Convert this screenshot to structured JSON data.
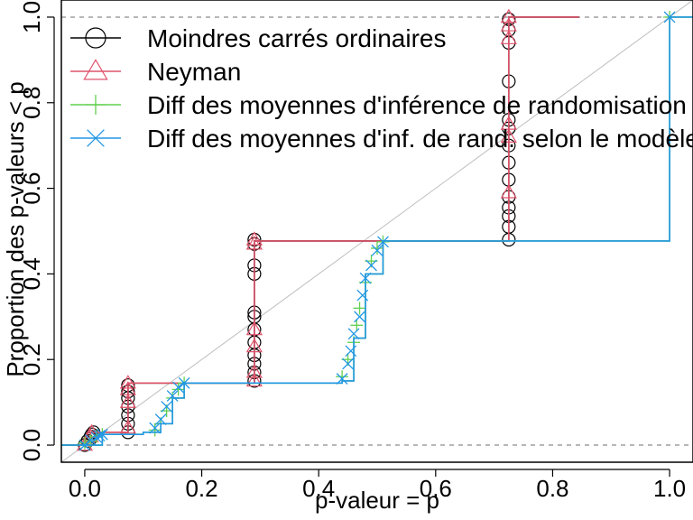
{
  "chart_data": {
    "type": "line",
    "title": "",
    "xlabel": "p-valeur = p",
    "ylabel": "Proportion des p-valeurs < p",
    "xlim": [
      -0.04,
      1.04
    ],
    "ylim": [
      -0.04,
      1.04
    ],
    "xticks": [
      "0.0",
      "0.2",
      "0.4",
      "0.6",
      "0.8",
      "1.0"
    ],
    "yticks": [
      "0.0",
      "0.2",
      "0.4",
      "0.6",
      "0.8",
      "1.0"
    ],
    "xtick_values": [
      0,
      0.2,
      0.4,
      0.6,
      0.8,
      1.0
    ],
    "ytick_values": [
      0,
      0.2,
      0.4,
      0.6,
      0.8,
      1.0
    ],
    "reference_lines": {
      "diagonal_color": "#bebebe",
      "dashed_y": [
        0,
        1
      ],
      "dashed_color": "#8c8c8c"
    },
    "legend_position": "top-left",
    "series": [
      {
        "name": "Moindres carrés ordinaires",
        "color": "#000000",
        "marker": "circle",
        "steps": [
          [
            -0.05,
            0
          ],
          [
            0,
            0.005
          ],
          [
            0.01,
            0.03
          ],
          [
            0.074,
            0.145
          ],
          [
            0.29,
            0.477
          ],
          [
            0.725,
            1.0
          ],
          [
            0.845,
            1.0
          ]
        ],
        "points": [
          [
            0,
            0.0
          ],
          [
            0.005,
            0.01
          ],
          [
            0.01,
            0.015
          ],
          [
            0.01,
            0.02
          ],
          [
            0.012,
            0.025
          ],
          [
            0.015,
            0.03
          ],
          [
            0.074,
            0.03
          ],
          [
            0.074,
            0.05
          ],
          [
            0.074,
            0.07
          ],
          [
            0.074,
            0.09
          ],
          [
            0.074,
            0.11
          ],
          [
            0.074,
            0.125
          ],
          [
            0.074,
            0.14
          ],
          [
            0.29,
            0.15
          ],
          [
            0.29,
            0.17
          ],
          [
            0.29,
            0.19
          ],
          [
            0.29,
            0.21
          ],
          [
            0.29,
            0.24
          ],
          [
            0.29,
            0.27
          ],
          [
            0.29,
            0.3
          ],
          [
            0.29,
            0.31
          ],
          [
            0.29,
            0.4
          ],
          [
            0.29,
            0.42
          ],
          [
            0.29,
            0.47
          ],
          [
            0.29,
            0.48
          ],
          [
            0.725,
            0.48
          ],
          [
            0.725,
            0.51
          ],
          [
            0.725,
            0.535
          ],
          [
            0.725,
            0.555
          ],
          [
            0.725,
            0.58
          ],
          [
            0.725,
            0.62
          ],
          [
            0.725,
            0.66
          ],
          [
            0.725,
            0.7
          ],
          [
            0.725,
            0.74
          ],
          [
            0.725,
            0.76
          ],
          [
            0.725,
            0.85
          ],
          [
            0.725,
            0.94
          ],
          [
            0.725,
            0.97
          ],
          [
            0.725,
            0.995
          ]
        ]
      },
      {
        "name": "Neyman",
        "color": "#df536b",
        "marker": "triangle",
        "steps": [
          [
            -0.05,
            0
          ],
          [
            0,
            0.005
          ],
          [
            0.01,
            0.03
          ],
          [
            0.074,
            0.145
          ],
          [
            0.29,
            0.477
          ],
          [
            0.725,
            1.0
          ],
          [
            0.845,
            1.0
          ]
        ],
        "points": [
          [
            0,
            0.0
          ],
          [
            0.01,
            0.02
          ],
          [
            0.012,
            0.03
          ],
          [
            0.074,
            0.04
          ],
          [
            0.074,
            0.1
          ],
          [
            0.074,
            0.13
          ],
          [
            0.074,
            0.145
          ],
          [
            0.29,
            0.15
          ],
          [
            0.29,
            0.17
          ],
          [
            0.29,
            0.23
          ],
          [
            0.29,
            0.27
          ],
          [
            0.29,
            0.47
          ],
          [
            0.29,
            0.48
          ],
          [
            0.725,
            0.59
          ],
          [
            0.725,
            0.72
          ],
          [
            0.725,
            0.75
          ],
          [
            0.725,
            0.95
          ],
          [
            0.725,
            0.98
          ],
          [
            0.725,
            1.0
          ]
        ]
      },
      {
        "name": "Diff des moyennes d'inférence de randomisation",
        "color": "#61d04f",
        "marker": "plus",
        "steps": [
          [
            -0.05,
            0
          ],
          [
            0.0,
            0.0
          ],
          [
            0.03,
            0.025
          ],
          [
            0.1,
            0.03
          ],
          [
            0.13,
            0.05
          ],
          [
            0.15,
            0.11
          ],
          [
            0.17,
            0.145
          ],
          [
            0.44,
            0.15
          ],
          [
            0.46,
            0.25
          ],
          [
            0.48,
            0.4
          ],
          [
            0.51,
            0.477
          ],
          [
            1.0,
            0.477
          ],
          [
            1.0,
            1.0
          ],
          [
            1.05,
            1.0
          ]
        ],
        "points": [
          [
            0.0,
            0.005
          ],
          [
            0.01,
            0.01
          ],
          [
            0.02,
            0.02
          ],
          [
            0.03,
            0.025
          ],
          [
            0.12,
            0.035
          ],
          [
            0.13,
            0.05
          ],
          [
            0.14,
            0.08
          ],
          [
            0.15,
            0.11
          ],
          [
            0.16,
            0.13
          ],
          [
            0.17,
            0.145
          ],
          [
            0.44,
            0.16
          ],
          [
            0.45,
            0.2
          ],
          [
            0.46,
            0.24
          ],
          [
            0.465,
            0.28
          ],
          [
            0.47,
            0.32
          ],
          [
            0.48,
            0.38
          ],
          [
            0.49,
            0.43
          ],
          [
            0.5,
            0.46
          ],
          [
            0.51,
            0.475
          ],
          [
            1.0,
            1.0
          ]
        ]
      },
      {
        "name": "Diff des moyennes d'inf. de rand. selon le modèle",
        "color": "#2297e6",
        "marker": "x",
        "steps": [
          [
            -0.05,
            0
          ],
          [
            0.0,
            0.0
          ],
          [
            0.03,
            0.025
          ],
          [
            0.1,
            0.03
          ],
          [
            0.13,
            0.05
          ],
          [
            0.15,
            0.11
          ],
          [
            0.17,
            0.145
          ],
          [
            0.44,
            0.15
          ],
          [
            0.46,
            0.25
          ],
          [
            0.48,
            0.4
          ],
          [
            0.51,
            0.477
          ],
          [
            1.0,
            0.477
          ],
          [
            1.0,
            1.0
          ],
          [
            1.05,
            1.0
          ]
        ],
        "points": [
          [
            0.0,
            0.0
          ],
          [
            0.01,
            0.012
          ],
          [
            0.02,
            0.018
          ],
          [
            0.025,
            0.022
          ],
          [
            0.03,
            0.025
          ],
          [
            0.12,
            0.04
          ],
          [
            0.13,
            0.06
          ],
          [
            0.14,
            0.09
          ],
          [
            0.15,
            0.115
          ],
          [
            0.16,
            0.135
          ],
          [
            0.17,
            0.145
          ],
          [
            0.44,
            0.155
          ],
          [
            0.45,
            0.19
          ],
          [
            0.455,
            0.22
          ],
          [
            0.46,
            0.26
          ],
          [
            0.47,
            0.3
          ],
          [
            0.475,
            0.35
          ],
          [
            0.48,
            0.39
          ],
          [
            0.49,
            0.42
          ],
          [
            0.5,
            0.455
          ],
          [
            0.51,
            0.475
          ],
          [
            1.0,
            1.0
          ]
        ]
      }
    ]
  }
}
